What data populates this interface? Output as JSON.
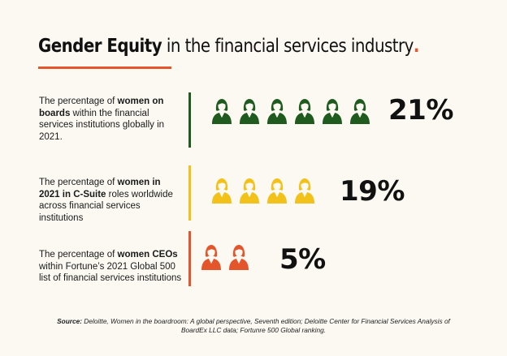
{
  "title": {
    "bold": "Gender Equity",
    "rest": " in the financial services industry",
    "dot": "."
  },
  "colors": {
    "green": "#1f5a1f",
    "yellow": "#f2c21b",
    "orange": "#e5552b",
    "background": "#fbf9f2"
  },
  "stats": [
    {
      "pre": "The percentage of ",
      "bold": "women on boards",
      "post": " within the financial services institutions globally in 2021.",
      "value": "21%",
      "icon_count": 6,
      "icon_name": "woman-icon",
      "color": "#1f5a1f"
    },
    {
      "pre": "The percentage of ",
      "bold": "women in 2021 in C-Suite",
      "post": " roles worldwide across financial services institutions",
      "value": "19%",
      "icon_count": 4,
      "icon_name": "woman-icon",
      "color": "#f2c21b"
    },
    {
      "pre": "The percentage of ",
      "bold": "women CEOs",
      "post": " within Fortune’s 2021 Global 500 list of financial services institutions",
      "value": "5%",
      "icon_count": 2,
      "icon_name": "woman-icon",
      "color": "#e5552b"
    }
  ],
  "source": {
    "label": "Source:",
    "text": " Deloitte, Women in the boardroom: A global perspective, Seventh edition; Deloitte Center for Financial Services Analysis of BoardEx LLC data; Fortunre 500 Global ranking."
  }
}
